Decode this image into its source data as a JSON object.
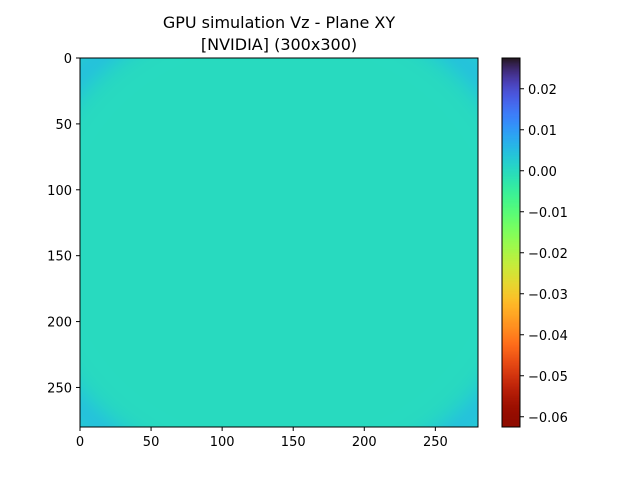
{
  "chart_data": {
    "type": "heatmap",
    "title": "GPU simulation Vz - Plane XY",
    "subtitle": "[NVIDIA] (300x300)",
    "xlabel": "",
    "ylabel": "",
    "xlim": [
      0,
      280
    ],
    "ylim": [
      280,
      0
    ],
    "x_ticks": [
      0,
      50,
      100,
      150,
      200,
      250
    ],
    "y_ticks": [
      0,
      50,
      100,
      150,
      200,
      250
    ],
    "x_tick_labels": [
      "0",
      "50",
      "100",
      "150",
      "200",
      "250"
    ],
    "y_tick_labels": [
      "0",
      "50",
      "100",
      "150",
      "200",
      "250"
    ],
    "colorbar": {
      "min": -0.0625,
      "max": 0.0275,
      "ticks": [
        0.02,
        0.01,
        0.0,
        -0.01,
        -0.02,
        -0.03,
        -0.04,
        -0.05,
        -0.06
      ],
      "tick_labels": [
        "0.02",
        "0.01",
        "0.00",
        "−0.01",
        "−0.02",
        "−0.03",
        "−0.04",
        "−0.05",
        "−0.06"
      ],
      "colormap": "turbo",
      "reversed": true
    },
    "field": {
      "description_of_pattern": "circular wavefront centered near (140,140)",
      "center": [
        140,
        140
      ],
      "wave_radius": 215,
      "background_value": 0.0
    }
  }
}
